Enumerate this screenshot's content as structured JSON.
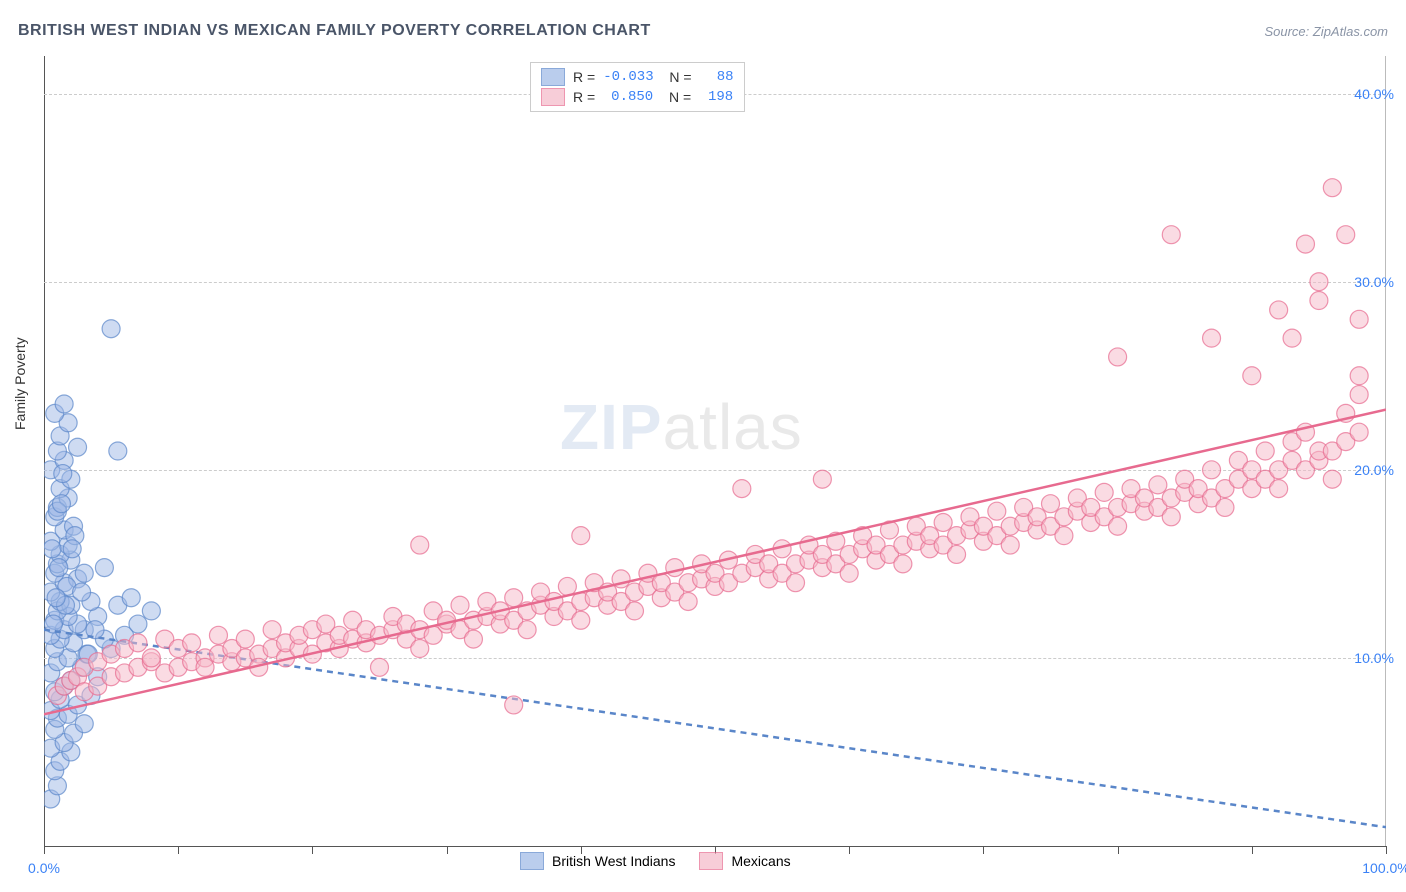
{
  "title": "BRITISH WEST INDIAN VS MEXICAN FAMILY POVERTY CORRELATION CHART",
  "source": "Source: ZipAtlas.com",
  "ylabel": "Family Poverty",
  "watermark_zip": "ZIP",
  "watermark_atlas": "atlas",
  "chart": {
    "type": "scatter",
    "xlim": [
      0,
      100
    ],
    "ylim": [
      0,
      42
    ],
    "x_axis_origin_y": 0,
    "xticks": [
      0,
      10,
      20,
      30,
      40,
      50,
      60,
      70,
      80,
      90,
      100
    ],
    "xtick_labels_show": [
      0,
      100
    ],
    "xtick_label_fmt": [
      "0.0%",
      "100.0%"
    ],
    "yticks": [
      10,
      20,
      30,
      40
    ],
    "ytick_labels": [
      "10.0%",
      "20.0%",
      "30.0%",
      "40.0%"
    ],
    "grid_color": "#cccccc",
    "background_color": "#ffffff",
    "axis_color": "#555555",
    "label_color": "#3b82f6",
    "marker_radius": 9,
    "marker_opacity": 0.5,
    "marker_stroke_width": 1.2,
    "line_width": 2.5,
    "dash_pattern": "6,5",
    "series": [
      {
        "name": "British West Indians",
        "color_fill": "#9db8e6",
        "color_stroke": "#5a86c9",
        "line_color": "#5a86c9",
        "line_dashed": true,
        "line_y_at_x0": 11.5,
        "line_y_at_x100": 1.0,
        "R": "-0.033",
        "N": "88",
        "points": [
          [
            0.5,
            2.5
          ],
          [
            1.0,
            3.2
          ],
          [
            0.8,
            4.0
          ],
          [
            1.2,
            4.5
          ],
          [
            2.0,
            5.0
          ],
          [
            0.5,
            5.2
          ],
          [
            1.5,
            5.5
          ],
          [
            2.2,
            6.0
          ],
          [
            0.8,
            6.2
          ],
          [
            3.0,
            6.5
          ],
          [
            1.0,
            6.8
          ],
          [
            1.8,
            7.0
          ],
          [
            0.5,
            7.2
          ],
          [
            2.5,
            7.5
          ],
          [
            1.2,
            7.8
          ],
          [
            3.5,
            8.0
          ],
          [
            0.8,
            8.2
          ],
          [
            1.5,
            8.5
          ],
          [
            2.0,
            8.8
          ],
          [
            4.0,
            9.0
          ],
          [
            0.5,
            9.2
          ],
          [
            2.8,
            9.5
          ],
          [
            1.0,
            9.8
          ],
          [
            1.8,
            10.0
          ],
          [
            3.2,
            10.2
          ],
          [
            0.8,
            10.5
          ],
          [
            5.0,
            10.5
          ],
          [
            2.2,
            10.8
          ],
          [
            1.2,
            11.0
          ],
          [
            4.5,
            11.0
          ],
          [
            0.5,
            11.2
          ],
          [
            6.0,
            11.2
          ],
          [
            1.5,
            11.5
          ],
          [
            3.0,
            11.5
          ],
          [
            2.5,
            11.8
          ],
          [
            7.0,
            11.8
          ],
          [
            0.8,
            12.0
          ],
          [
            1.8,
            12.2
          ],
          [
            4.0,
            12.2
          ],
          [
            1.0,
            12.5
          ],
          [
            8.0,
            12.5
          ],
          [
            2.0,
            12.8
          ],
          [
            5.5,
            12.8
          ],
          [
            1.2,
            13.0
          ],
          [
            3.5,
            13.0
          ],
          [
            0.5,
            13.5
          ],
          [
            6.5,
            13.2
          ],
          [
            1.5,
            14.0
          ],
          [
            2.5,
            14.2
          ],
          [
            0.8,
            14.5
          ],
          [
            1.0,
            15.0
          ],
          [
            2.0,
            15.2
          ],
          [
            4.5,
            14.8
          ],
          [
            1.2,
            15.5
          ],
          [
            1.8,
            16.0
          ],
          [
            0.5,
            16.2
          ],
          [
            1.5,
            16.8
          ],
          [
            2.2,
            17.0
          ],
          [
            0.8,
            17.5
          ],
          [
            1.0,
            18.0
          ],
          [
            1.8,
            18.5
          ],
          [
            1.2,
            19.0
          ],
          [
            2.0,
            19.5
          ],
          [
            0.5,
            20.0
          ],
          [
            1.5,
            20.5
          ],
          [
            1.0,
            21.0
          ],
          [
            2.5,
            21.2
          ],
          [
            1.2,
            21.8
          ],
          [
            1.8,
            22.5
          ],
          [
            5.5,
            21.0
          ],
          [
            0.8,
            23.0
          ],
          [
            1.5,
            23.5
          ],
          [
            5.0,
            27.5
          ],
          [
            1.0,
            17.8
          ],
          [
            3.0,
            14.5
          ],
          [
            1.7,
            13.8
          ],
          [
            2.3,
            16.5
          ],
          [
            1.4,
            19.8
          ],
          [
            0.7,
            11.8
          ],
          [
            2.8,
            13.5
          ],
          [
            1.1,
            14.8
          ],
          [
            3.8,
            11.5
          ],
          [
            1.6,
            12.8
          ],
          [
            2.1,
            15.8
          ],
          [
            0.9,
            13.2
          ],
          [
            3.3,
            10.2
          ],
          [
            1.3,
            18.2
          ],
          [
            0.6,
            15.8
          ]
        ]
      },
      {
        "name": "Mexicans",
        "color_fill": "#f5b8c8",
        "color_stroke": "#e76a8f",
        "line_color": "#e76a8f",
        "line_dashed": false,
        "line_y_at_x0": 7.0,
        "line_y_at_x100": 23.2,
        "R": "0.850",
        "N": "198",
        "points": [
          [
            1,
            8.0
          ],
          [
            1.5,
            8.5
          ],
          [
            2,
            8.8
          ],
          [
            2.5,
            9.0
          ],
          [
            3,
            8.2
          ],
          [
            3,
            9.5
          ],
          [
            4,
            8.5
          ],
          [
            4,
            9.8
          ],
          [
            5,
            9.0
          ],
          [
            5,
            10.2
          ],
          [
            6,
            9.2
          ],
          [
            6,
            10.5
          ],
          [
            7,
            9.5
          ],
          [
            7,
            10.8
          ],
          [
            8,
            9.8
          ],
          [
            8,
            10.0
          ],
          [
            9,
            9.2
          ],
          [
            9,
            11.0
          ],
          [
            10,
            9.5
          ],
          [
            10,
            10.5
          ],
          [
            11,
            9.8
          ],
          [
            11,
            10.8
          ],
          [
            12,
            10.0
          ],
          [
            12,
            9.5
          ],
          [
            13,
            10.2
          ],
          [
            13,
            11.2
          ],
          [
            14,
            9.8
          ],
          [
            14,
            10.5
          ],
          [
            15,
            10.0
          ],
          [
            15,
            11.0
          ],
          [
            16,
            10.2
          ],
          [
            16,
            9.5
          ],
          [
            17,
            10.5
          ],
          [
            17,
            11.5
          ],
          [
            18,
            10.0
          ],
          [
            18,
            10.8
          ],
          [
            19,
            10.5
          ],
          [
            19,
            11.2
          ],
          [
            20,
            10.2
          ],
          [
            20,
            11.5
          ],
          [
            21,
            10.8
          ],
          [
            21,
            11.8
          ],
          [
            22,
            10.5
          ],
          [
            22,
            11.2
          ],
          [
            23,
            11.0
          ],
          [
            23,
            12.0
          ],
          [
            24,
            10.8
          ],
          [
            24,
            11.5
          ],
          [
            25,
            9.5
          ],
          [
            25,
            11.2
          ],
          [
            26,
            11.5
          ],
          [
            26,
            12.2
          ],
          [
            27,
            11.0
          ],
          [
            27,
            11.8
          ],
          [
            28,
            11.5
          ],
          [
            28,
            10.5
          ],
          [
            28,
            16.0
          ],
          [
            29,
            11.2
          ],
          [
            29,
            12.5
          ],
          [
            30,
            11.8
          ],
          [
            30,
            12.0
          ],
          [
            31,
            11.5
          ],
          [
            31,
            12.8
          ],
          [
            32,
            12.0
          ],
          [
            32,
            11.0
          ],
          [
            33,
            12.2
          ],
          [
            33,
            13.0
          ],
          [
            34,
            11.8
          ],
          [
            34,
            12.5
          ],
          [
            35,
            12.0
          ],
          [
            35,
            13.2
          ],
          [
            35,
            7.5
          ],
          [
            36,
            12.5
          ],
          [
            36,
            11.5
          ],
          [
            37,
            12.8
          ],
          [
            37,
            13.5
          ],
          [
            38,
            12.2
          ],
          [
            38,
            13.0
          ],
          [
            39,
            12.5
          ],
          [
            39,
            13.8
          ],
          [
            40,
            13.0
          ],
          [
            40,
            12.0
          ],
          [
            40,
            16.5
          ],
          [
            41,
            13.2
          ],
          [
            41,
            14.0
          ],
          [
            42,
            12.8
          ],
          [
            42,
            13.5
          ],
          [
            43,
            13.0
          ],
          [
            43,
            14.2
          ],
          [
            44,
            13.5
          ],
          [
            44,
            12.5
          ],
          [
            45,
            13.8
          ],
          [
            45,
            14.5
          ],
          [
            46,
            13.2
          ],
          [
            46,
            14.0
          ],
          [
            47,
            13.5
          ],
          [
            47,
            14.8
          ],
          [
            48,
            14.0
          ],
          [
            48,
            13.0
          ],
          [
            49,
            14.2
          ],
          [
            49,
            15.0
          ],
          [
            50,
            13.8
          ],
          [
            50,
            14.5
          ],
          [
            51,
            14.0
          ],
          [
            51,
            15.2
          ],
          [
            52,
            14.5
          ],
          [
            52,
            19.0
          ],
          [
            53,
            14.8
          ],
          [
            53,
            15.5
          ],
          [
            54,
            14.2
          ],
          [
            54,
            15.0
          ],
          [
            55,
            14.5
          ],
          [
            55,
            15.8
          ],
          [
            56,
            15.0
          ],
          [
            56,
            14.0
          ],
          [
            57,
            15.2
          ],
          [
            57,
            16.0
          ],
          [
            58,
            14.8
          ],
          [
            58,
            15.5
          ],
          [
            58,
            19.5
          ],
          [
            59,
            15.0
          ],
          [
            59,
            16.2
          ],
          [
            60,
            15.5
          ],
          [
            60,
            14.5
          ],
          [
            61,
            15.8
          ],
          [
            61,
            16.5
          ],
          [
            62,
            15.2
          ],
          [
            62,
            16.0
          ],
          [
            63,
            15.5
          ],
          [
            63,
            16.8
          ],
          [
            64,
            16.0
          ],
          [
            64,
            15.0
          ],
          [
            65,
            16.2
          ],
          [
            65,
            17.0
          ],
          [
            66,
            15.8
          ],
          [
            66,
            16.5
          ],
          [
            67,
            16.0
          ],
          [
            67,
            17.2
          ],
          [
            68,
            16.5
          ],
          [
            68,
            15.5
          ],
          [
            69,
            16.8
          ],
          [
            69,
            17.5
          ],
          [
            70,
            16.2
          ],
          [
            70,
            17.0
          ],
          [
            71,
            16.5
          ],
          [
            71,
            17.8
          ],
          [
            72,
            17.0
          ],
          [
            72,
            16.0
          ],
          [
            73,
            17.2
          ],
          [
            73,
            18.0
          ],
          [
            74,
            16.8
          ],
          [
            74,
            17.5
          ],
          [
            75,
            17.0
          ],
          [
            75,
            18.2
          ],
          [
            76,
            17.5
          ],
          [
            76,
            16.5
          ],
          [
            77,
            17.8
          ],
          [
            77,
            18.5
          ],
          [
            78,
            17.2
          ],
          [
            78,
            18.0
          ],
          [
            79,
            17.5
          ],
          [
            79,
            18.8
          ],
          [
            80,
            18.0
          ],
          [
            80,
            17.0
          ],
          [
            80,
            26.0
          ],
          [
            81,
            18.2
          ],
          [
            81,
            19.0
          ],
          [
            82,
            17.8
          ],
          [
            82,
            18.5
          ],
          [
            83,
            18.0
          ],
          [
            83,
            19.2
          ],
          [
            84,
            18.5
          ],
          [
            84,
            17.5
          ],
          [
            84,
            32.5
          ],
          [
            85,
            18.8
          ],
          [
            85,
            19.5
          ],
          [
            86,
            18.2
          ],
          [
            86,
            19.0
          ],
          [
            87,
            18.5
          ],
          [
            87,
            20.0
          ],
          [
            87,
            27.0
          ],
          [
            88,
            19.0
          ],
          [
            88,
            18.0
          ],
          [
            89,
            19.5
          ],
          [
            89,
            20.5
          ],
          [
            90,
            19.0
          ],
          [
            90,
            20.0
          ],
          [
            90,
            25.0
          ],
          [
            91,
            19.5
          ],
          [
            91,
            21.0
          ],
          [
            92,
            20.0
          ],
          [
            92,
            19.0
          ],
          [
            92,
            28.5
          ],
          [
            93,
            20.5
          ],
          [
            93,
            21.5
          ],
          [
            93,
            27.0
          ],
          [
            94,
            20.0
          ],
          [
            94,
            22.0
          ],
          [
            94,
            32.0
          ],
          [
            95,
            20.5
          ],
          [
            95,
            21.0
          ],
          [
            95,
            29.0
          ],
          [
            95,
            30.0
          ],
          [
            96,
            21.0
          ],
          [
            96,
            19.5
          ],
          [
            96,
            35.0
          ],
          [
            97,
            21.5
          ],
          [
            97,
            23.0
          ],
          [
            97,
            32.5
          ],
          [
            98,
            22.0
          ],
          [
            98,
            24.0
          ],
          [
            98,
            28.0
          ],
          [
            98,
            25.0
          ]
        ]
      }
    ]
  },
  "stats_box": {
    "rows": [
      {
        "swatch": "#9db8e6",
        "border": "#5a86c9",
        "R": "-0.033",
        "N": "88"
      },
      {
        "swatch": "#f5b8c8",
        "border": "#e76a8f",
        "R": "0.850",
        "N": "198"
      }
    ]
  },
  "bottom_legend": [
    {
      "swatch": "#9db8e6",
      "border": "#5a86c9",
      "label": "British West Indians"
    },
    {
      "swatch": "#f5b8c8",
      "border": "#e76a8f",
      "label": "Mexicans"
    }
  ]
}
